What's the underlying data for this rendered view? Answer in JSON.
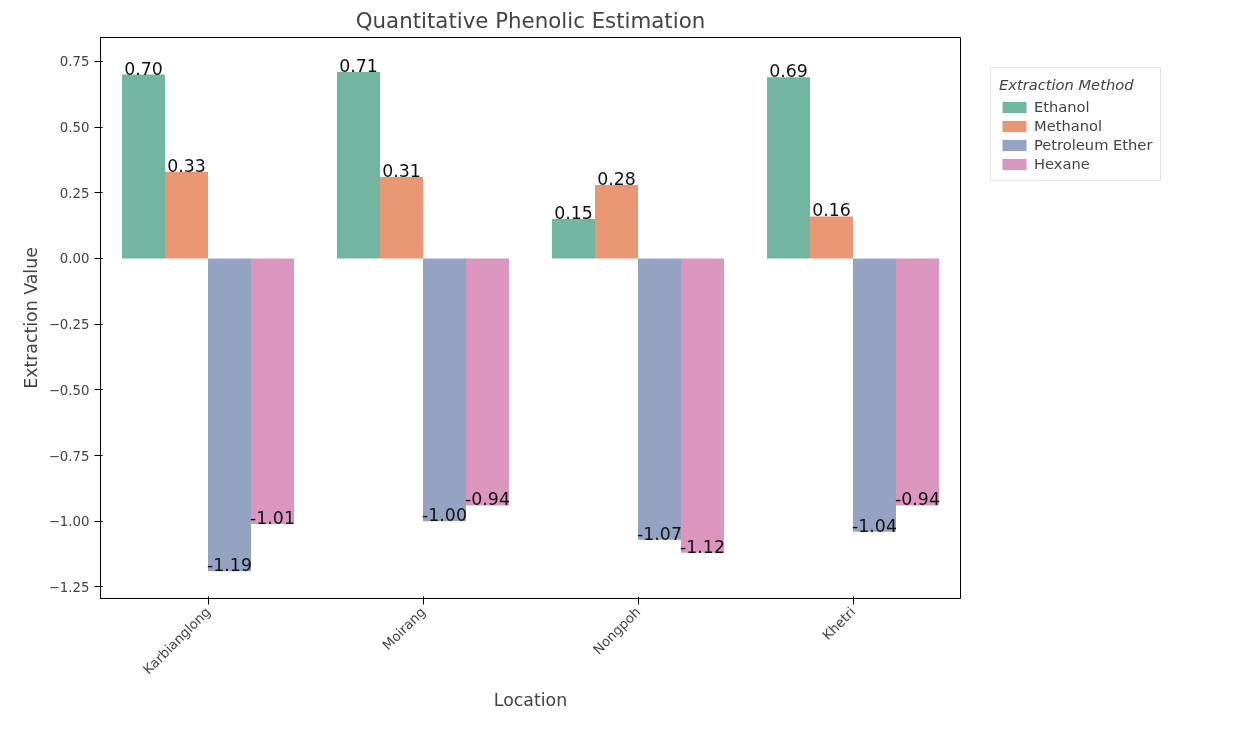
{
  "chart_data": {
    "type": "bar",
    "title": "Quantitative Phenolic Estimation",
    "xlabel": "Location",
    "ylabel": "Extraction Value",
    "legend_title": "Extraction Method",
    "categories": [
      "Karbianglong",
      "Moirang",
      "Nongpoh",
      "Khetri"
    ],
    "series": [
      {
        "name": "Ethanol",
        "color": "#72b6a1",
        "values": [
          0.7,
          0.71,
          0.15,
          0.69
        ],
        "value_labels": [
          "0.70",
          "0.71",
          "0.15",
          "0.69"
        ]
      },
      {
        "name": "Methanol",
        "color": "#e99675",
        "values": [
          0.33,
          0.31,
          0.28,
          0.16
        ],
        "value_labels": [
          "0.33",
          "0.31",
          "0.28",
          "0.16"
        ]
      },
      {
        "name": "Petroleum Ether",
        "color": "#95a3c3",
        "values": [
          -1.19,
          -1.0,
          -1.07,
          -1.04
        ],
        "value_labels": [
          "-1.19",
          "-1.00",
          "-1.07",
          "-1.04"
        ]
      },
      {
        "name": "Hexane",
        "color": "#db96c0",
        "values": [
          -1.01,
          -0.94,
          -1.12,
          -0.94
        ],
        "value_labels": [
          "-1.01",
          "-0.94",
          "-1.12",
          "-0.94"
        ]
      }
    ],
    "ylim": [
      -1.294,
      0.841
    ],
    "yticks": [
      {
        "value": 0.75,
        "label": "0.75"
      },
      {
        "value": 0.5,
        "label": "0.50"
      },
      {
        "value": 0.25,
        "label": "0.25"
      },
      {
        "value": 0,
        "label": "0.00"
      },
      {
        "value": -0.25,
        "label": "−0.25"
      },
      {
        "value": -0.5,
        "label": "−0.50"
      },
      {
        "value": -0.75,
        "label": "−0.75"
      },
      {
        "value": -1,
        "label": "−1.00"
      },
      {
        "value": -1.25,
        "label": "−1.25"
      }
    ],
    "grid": false,
    "legend": "top right"
  }
}
